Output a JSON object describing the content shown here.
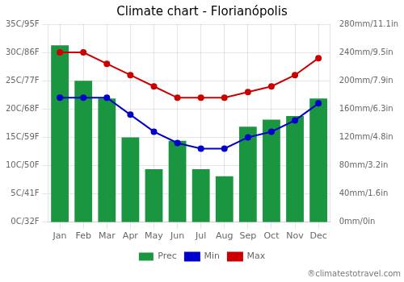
{
  "chart_data": {
    "type": "bar",
    "title": "Climate chart - Florianópolis",
    "categories": [
      "Jan",
      "Feb",
      "Mar",
      "Apr",
      "May",
      "Jun",
      "Jul",
      "Aug",
      "Sep",
      "Oct",
      "Nov",
      "Dec"
    ],
    "series": [
      {
        "name": "Prec",
        "type": "bar",
        "axis": "y2",
        "color": "#1a9641",
        "values": [
          250,
          200,
          175,
          120,
          75,
          115,
          75,
          65,
          135,
          145,
          150,
          175
        ]
      },
      {
        "name": "Min",
        "type": "line",
        "color": "#0000cc",
        "marker": "circle",
        "line_style": "solid",
        "values": [
          22,
          22,
          22,
          19,
          16,
          14,
          13,
          13,
          15,
          16,
          18,
          21
        ]
      },
      {
        "name": "Max",
        "type": "line",
        "color": "#cc0000",
        "marker": "circle",
        "line_style": "solid",
        "values": [
          30,
          30,
          28,
          26,
          24,
          22,
          22,
          22,
          23,
          24,
          26,
          29
        ]
      }
    ],
    "ylim": [
      0,
      35
    ],
    "yticks": [
      {
        "value": 0,
        "label": "0C/32F"
      },
      {
        "value": 5,
        "label": "5C/41F"
      },
      {
        "value": 10,
        "label": "10C/50F"
      },
      {
        "value": 15,
        "label": "15C/59F"
      },
      {
        "value": 20,
        "label": "20C/68F"
      },
      {
        "value": 25,
        "label": "25C/77F"
      },
      {
        "value": 30,
        "label": "30C/86F"
      },
      {
        "value": 35,
        "label": "35C/95F"
      }
    ],
    "y2lim": [
      0,
      280
    ],
    "y2ticks": [
      {
        "value": 0,
        "label": "0mm/0in"
      },
      {
        "value": 40,
        "label": "40mm/1.6in"
      },
      {
        "value": 80,
        "label": "80mm/3.2in"
      },
      {
        "value": 120,
        "label": "120mm/4.8in"
      },
      {
        "value": 160,
        "label": "160mm/6.3in"
      },
      {
        "value": 200,
        "label": "200mm/7.9in"
      },
      {
        "value": 240,
        "label": "240mm/9.5in"
      },
      {
        "value": 280,
        "label": "280mm/11.1in"
      }
    ],
    "grid": true,
    "legend": "bottom",
    "annotations": [
      {
        "text": "®climatestotravel.com",
        "color": "#777777"
      }
    ]
  }
}
